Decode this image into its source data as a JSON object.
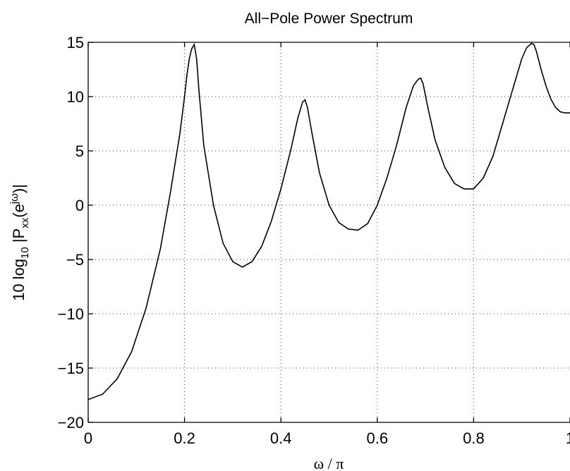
{
  "chart_data": {
    "type": "line",
    "title": "All−Pole Power Spectrum",
    "xlabel": "ω / π",
    "ylabel": {
      "prefix": "10 log",
      "sub1": "10",
      "mid": " |P",
      "sub2": "xx",
      "mid2": "(e",
      "sup": "jω",
      "suffix": ")|"
    },
    "xlim": [
      0,
      1
    ],
    "ylim": [
      -20,
      15
    ],
    "grid": true,
    "xticks": [
      {
        "value": 0,
        "label": "0"
      },
      {
        "value": 0.2,
        "label": "0.2"
      },
      {
        "value": 0.4,
        "label": "0.4"
      },
      {
        "value": 0.6,
        "label": "0.6"
      },
      {
        "value": 0.8,
        "label": "0.8"
      },
      {
        "value": 1,
        "label": "1"
      }
    ],
    "yticks": [
      {
        "value": 15,
        "label": "15"
      },
      {
        "value": 10,
        "label": "10"
      },
      {
        "value": 5,
        "label": "5"
      },
      {
        "value": 0,
        "label": "0"
      },
      {
        "value": -5,
        "label": "−5"
      },
      {
        "value": -10,
        "label": "−10"
      },
      {
        "value": -15,
        "label": "−15"
      },
      {
        "value": -20,
        "label": "−20"
      }
    ],
    "series": [
      {
        "x": [
          0,
          0.03,
          0.06,
          0.09,
          0.12,
          0.15,
          0.17,
          0.19,
          0.2,
          0.205,
          0.21,
          0.215,
          0.22,
          0.225,
          0.23,
          0.24,
          0.26,
          0.28,
          0.3,
          0.32,
          0.34,
          0.36,
          0.38,
          0.4,
          0.42,
          0.435,
          0.445,
          0.45,
          0.455,
          0.465,
          0.48,
          0.5,
          0.52,
          0.54,
          0.56,
          0.58,
          0.6,
          0.62,
          0.64,
          0.66,
          0.675,
          0.685,
          0.69,
          0.695,
          0.705,
          0.72,
          0.74,
          0.76,
          0.78,
          0.8,
          0.82,
          0.84,
          0.86,
          0.88,
          0.9,
          0.91,
          0.92,
          0.925,
          0.93,
          0.94,
          0.95,
          0.96,
          0.97,
          0.98,
          0.99,
          1.0
        ],
        "y": [
          -17.9,
          -17.4,
          -16.0,
          -13.5,
          -9.5,
          -4.0,
          1.0,
          6.5,
          10.0,
          12.0,
          13.5,
          14.4,
          14.8,
          13.5,
          10.5,
          5.5,
          0.0,
          -3.5,
          -5.2,
          -5.7,
          -5.2,
          -3.8,
          -1.5,
          1.5,
          5.0,
          8.0,
          9.5,
          9.7,
          9.0,
          6.5,
          3.0,
          0.0,
          -1.6,
          -2.2,
          -2.3,
          -1.7,
          0.0,
          2.5,
          5.5,
          9.0,
          11.0,
          11.6,
          11.7,
          11.2,
          9.0,
          6.0,
          3.5,
          2.0,
          1.5,
          1.5,
          2.5,
          4.5,
          7.5,
          10.5,
          13.5,
          14.5,
          14.9,
          14.8,
          14.2,
          12.5,
          11.0,
          9.8,
          9.0,
          8.6,
          8.5,
          8.5
        ]
      }
    ]
  }
}
